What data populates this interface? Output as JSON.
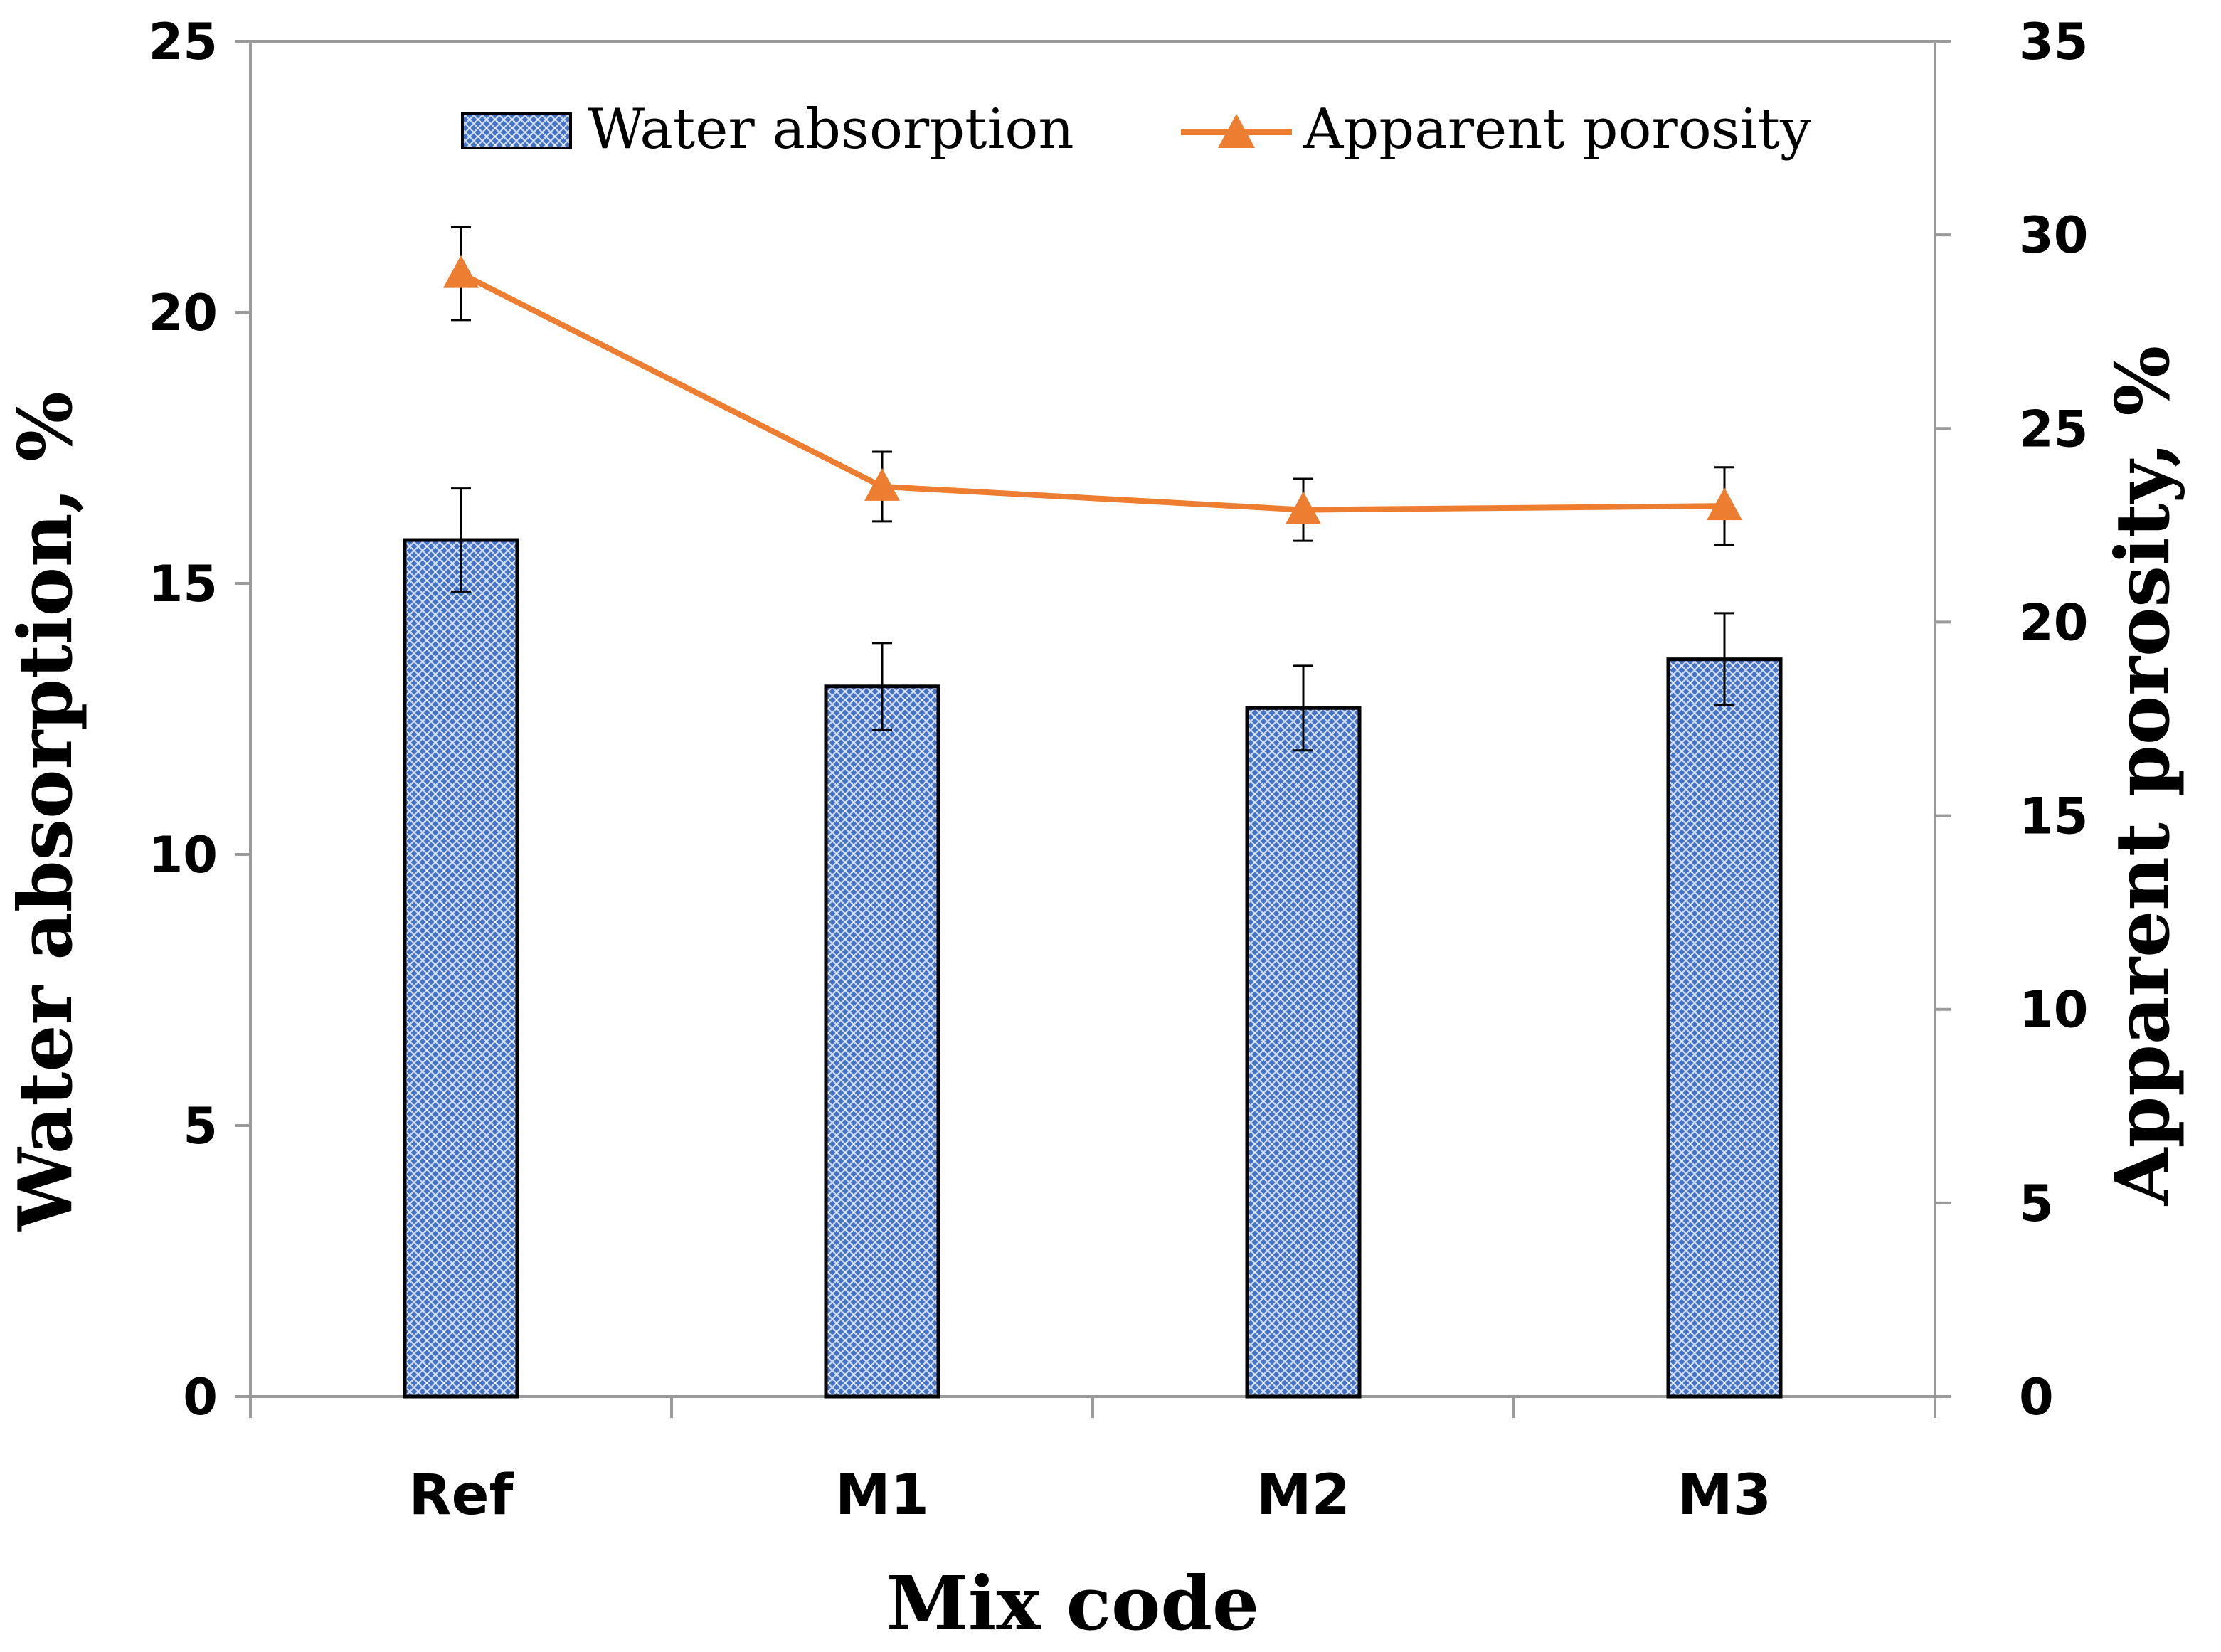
{
  "chart_data": {
    "type": "bar+line",
    "categories": [
      "Ref",
      "M1",
      "M2",
      "M3"
    ],
    "series": [
      {
        "name": "Water absorption",
        "type": "bar",
        "axis": "left",
        "values": [
          15.8,
          13.1,
          12.7,
          13.6
        ],
        "error": [
          0.95,
          0.8,
          0.78,
          0.85
        ],
        "color": "#4472C4"
      },
      {
        "name": "Apparent porosity",
        "type": "line",
        "axis": "right",
        "marker": "triangle",
        "values": [
          29.0,
          23.5,
          22.9,
          23.0
        ],
        "error": [
          1.2,
          0.9,
          0.8,
          1.0
        ],
        "color": "#ED7D31"
      }
    ],
    "xlabel": "Mix code",
    "ylabel_left": "Water absorption, %",
    "ylabel_right": "Apparent porosity, %",
    "ylim_left": [
      0,
      25
    ],
    "yticks_left": [
      "0",
      "5",
      "10",
      "15",
      "20",
      "25"
    ],
    "ylim_right": [
      0,
      35
    ],
    "yticks_right": [
      "0",
      "5",
      "10",
      "15",
      "20",
      "25",
      "30",
      "35"
    ],
    "legend": {
      "position": "top-center",
      "entries": [
        "Water absorption",
        "Apparent porosity"
      ]
    },
    "grid": false
  }
}
